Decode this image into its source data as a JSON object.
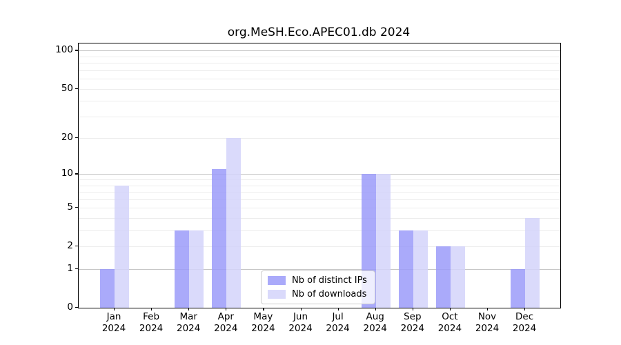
{
  "chart_data": {
    "type": "bar",
    "title": "org.MeSH.Eco.APEC01.db 2024",
    "categories": [
      "Jan 2024",
      "Feb 2024",
      "Mar 2024",
      "Apr 2024",
      "May 2024",
      "Jun 2024",
      "Jul 2024",
      "Aug 2024",
      "Sep 2024",
      "Oct 2024",
      "Nov 2024",
      "Dec 2024"
    ],
    "series": [
      {
        "name": "Nb of distinct IPs",
        "color": "#aaaafa",
        "values": [
          1,
          0,
          3,
          11,
          0,
          0,
          0,
          10,
          3,
          2,
          0,
          1
        ]
      },
      {
        "name": "Nb of downloads",
        "color": "#dadafa",
        "values": [
          8,
          0,
          3,
          20,
          0,
          0,
          0,
          10,
          3,
          2,
          0,
          4
        ]
      }
    ],
    "xlabel": "",
    "ylabel": "",
    "yscale": "log1p",
    "ylim": [
      0,
      114
    ],
    "y_ticks": [
      0,
      1,
      2,
      5,
      10,
      20,
      50,
      100
    ],
    "y_minor_gridlines": [
      2,
      3,
      4,
      5,
      6,
      7,
      8,
      9,
      20,
      30,
      40,
      50,
      60,
      70,
      80,
      90
    ],
    "y_major_gridlines": [
      1,
      10,
      100
    ],
    "grid": "horizontal",
    "legend_position": "lower-center"
  },
  "colors": {
    "bar_ips": "#aaaafa",
    "bar_downloads": "#dadafa",
    "grid_minor": "#ececec",
    "grid_major": "#c6c6c6",
    "spine": "#000000",
    "background": "#ffffff"
  }
}
